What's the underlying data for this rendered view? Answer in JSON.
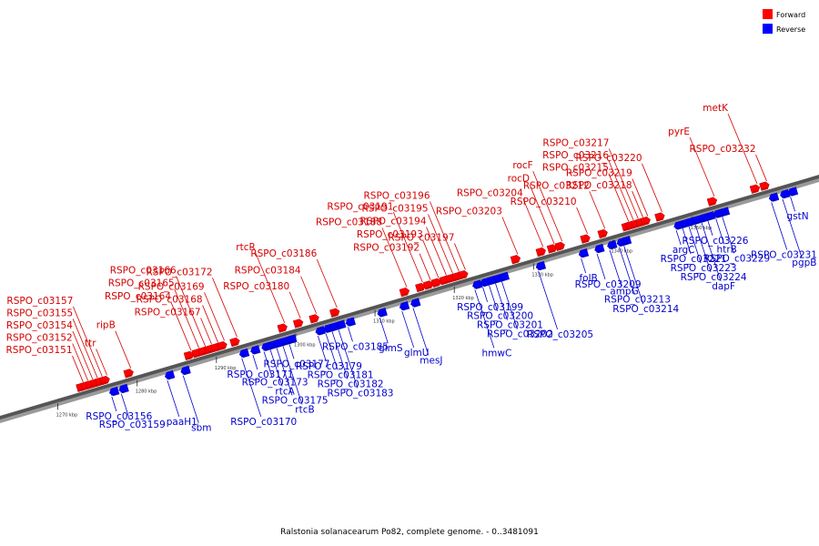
{
  "legend": [
    {
      "label": "Forward",
      "color": "#ff0000"
    },
    {
      "label": "Reverse",
      "color": "#0000ff"
    }
  ],
  "caption": "Ralstonia solanacearum Po82, complete genome. - 0..3481091",
  "scale": [
    {
      "label": "1270 kbp",
      "kbp": 1270
    },
    {
      "label": "1280 kbp",
      "kbp": 1280
    },
    {
      "label": "1290 kbp",
      "kbp": 1290
    },
    {
      "label": "1300 kbp",
      "kbp": 1300
    },
    {
      "label": "1310 kbp",
      "kbp": 1310
    },
    {
      "label": "1320 kbp",
      "kbp": 1320
    },
    {
      "label": "1330 kbp",
      "kbp": 1330
    },
    {
      "label": "1340 kbp",
      "kbp": 1340
    },
    {
      "label": "1350 kbp",
      "kbp": 1350
    }
  ],
  "forward_genes": [
    {
      "label": "RSPO_c03151",
      "kbp": 1273.2
    },
    {
      "label": "RSPO_c03152",
      "kbp": 1273.8
    },
    {
      "label": "RSPO_c03154",
      "kbp": 1274.4
    },
    {
      "label": "RSPO_c03155",
      "kbp": 1275.0
    },
    {
      "label": "RSPO_c03157",
      "kbp": 1275.6
    },
    {
      "label": "ttr",
      "kbp": 1276.2
    },
    {
      "label": "ripB",
      "kbp": 1279.2
    },
    {
      "label": "RSPO_c03164",
      "kbp": 1286.8
    },
    {
      "label": "RSPO_c03165",
      "kbp": 1287.8
    },
    {
      "label": "RSPO_c03166",
      "kbp": 1288.6
    },
    {
      "label": "RSPO_c03167",
      "kbp": 1289.4
    },
    {
      "label": "RSPO_c03168",
      "kbp": 1290.2
    },
    {
      "label": "RSPO_c03169",
      "kbp": 1291.0
    },
    {
      "label": "RSPO_c03172",
      "kbp": 1292.6
    },
    {
      "label": "rtcR",
      "kbp": 1298.6
    },
    {
      "label": "RSPO_c03180",
      "kbp": 1300.6
    },
    {
      "label": "RSPO_c03184",
      "kbp": 1302.6
    },
    {
      "label": "RSPO_c03186",
      "kbp": 1305.2
    },
    {
      "label": "RSPO_c03188",
      "kbp": 1314.0
    },
    {
      "label": "RSPO_c03191",
      "kbp": 1316.0
    },
    {
      "label": "RSPO_c03192",
      "kbp": 1317.0
    },
    {
      "label": "RSPO_c03193",
      "kbp": 1318.0
    },
    {
      "label": "RSPO_c03194",
      "kbp": 1319.0
    },
    {
      "label": "RSPO_c03195",
      "kbp": 1319.8
    },
    {
      "label": "RSPO_c03196",
      "kbp": 1320.6
    },
    {
      "label": "RSPO_c03197",
      "kbp": 1321.4
    },
    {
      "label": "RSPO_c03203",
      "kbp": 1328.0
    },
    {
      "label": "RSPO_c03204",
      "kbp": 1331.2
    },
    {
      "label": "rocD",
      "kbp": 1332.6
    },
    {
      "label": "rocF",
      "kbp": 1333.6
    },
    {
      "label": "RSPO_c03210",
      "kbp": 1336.8
    },
    {
      "label": "RSPO_c03212",
      "kbp": 1339.0
    },
    {
      "label": "RSPO_c03215",
      "kbp": 1342.0
    },
    {
      "label": "RSPO_c03216",
      "kbp": 1342.6
    },
    {
      "label": "RSPO_c03217",
      "kbp": 1343.2
    },
    {
      "label": "RSPO_c03218",
      "kbp": 1343.8
    },
    {
      "label": "RSPO_c03219",
      "kbp": 1344.4
    },
    {
      "label": "RSPO_c03220",
      "kbp": 1346.2
    },
    {
      "label": "pyrE",
      "kbp": 1352.8
    },
    {
      "label": "metK",
      "kbp": 1358.2
    },
    {
      "label": "RSPO_c03232",
      "kbp": 1359.4
    }
  ],
  "reverse_genes": [
    {
      "label": "RSPO_c03156",
      "kbp": 1276.8
    },
    {
      "label": "RSPO_c03159",
      "kbp": 1278.0
    },
    {
      "label": "paaH1",
      "kbp": 1283.8
    },
    {
      "label": "sbm",
      "kbp": 1285.8
    },
    {
      "label": "RSPO_c03170",
      "kbp": 1293.2
    },
    {
      "label": "RSPO_c03171",
      "kbp": 1294.6
    },
    {
      "label": "RSPO_c03173",
      "kbp": 1296.0
    },
    {
      "label": "rtcA",
      "kbp": 1296.8
    },
    {
      "label": "RSPO_c03175",
      "kbp": 1297.6
    },
    {
      "label": "rtcB",
      "kbp": 1298.4
    },
    {
      "label": "RSPO_c03177",
      "kbp": 1299.2
    },
    {
      "label": "RSPO_c03179",
      "kbp": 1302.8
    },
    {
      "label": "RSPO_c03181",
      "kbp": 1303.8
    },
    {
      "label": "RSPO_c03182",
      "kbp": 1304.6
    },
    {
      "label": "RSPO_c03183",
      "kbp": 1305.4
    },
    {
      "label": "RSPO_c03185",
      "kbp": 1306.6
    },
    {
      "label": "glmS",
      "kbp": 1310.6
    },
    {
      "label": "glmU",
      "kbp": 1313.4
    },
    {
      "label": "mesJ",
      "kbp": 1314.8
    },
    {
      "label": "hmwC",
      "kbp": 1322.6
    },
    {
      "label": "RSPO_c03199",
      "kbp": 1323.6
    },
    {
      "label": "RSPO_c03200",
      "kbp": 1324.4
    },
    {
      "label": "RSPO_c03201",
      "kbp": 1325.2
    },
    {
      "label": "RSPO_c03202",
      "kbp": 1326.0
    },
    {
      "label": "RSPO_c03205",
      "kbp": 1330.6
    },
    {
      "label": "folB",
      "kbp": 1336.0
    },
    {
      "label": "RSPO_c03209",
      "kbp": 1338.0
    },
    {
      "label": "ampG",
      "kbp": 1339.6
    },
    {
      "label": "RSPO_c03213",
      "kbp": 1340.8
    },
    {
      "label": "RSPO_c03214",
      "kbp": 1341.4
    },
    {
      "label": "argC",
      "kbp": 1348.0
    },
    {
      "label": "RSPO_c03221",
      "kbp": 1348.8
    },
    {
      "label": "RSPO_c03223",
      "kbp": 1349.6
    },
    {
      "label": "RSPO_c03224",
      "kbp": 1350.4
    },
    {
      "label": "dapF",
      "kbp": 1351.2
    },
    {
      "label": "RSPO_c03226",
      "kbp": 1352.0
    },
    {
      "label": "htrB",
      "kbp": 1353.0
    },
    {
      "label": "RSPO_c03229",
      "kbp": 1353.8
    },
    {
      "label": "RSPO_c03231",
      "kbp": 1360.0
    },
    {
      "label": "pgpB",
      "kbp": 1361.4
    },
    {
      "label": "gstN",
      "kbp": 1362.4
    }
  ]
}
